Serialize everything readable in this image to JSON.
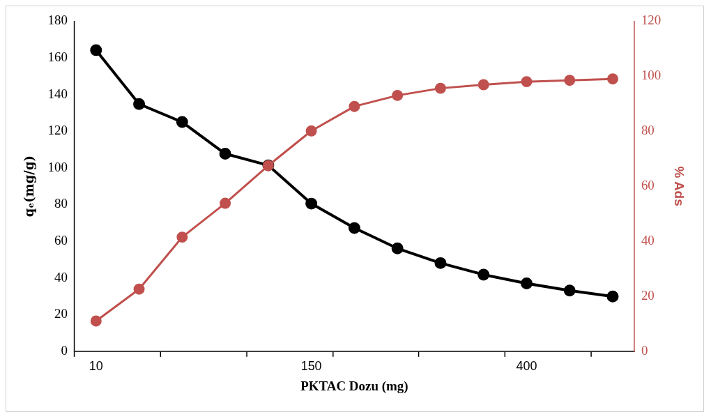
{
  "chart_data": {
    "type": "line",
    "xlabel": "PKTAC Dozu (mg)",
    "ylabel": "qₑ(mg/g)",
    "y2label": "% Ads",
    "categories": [
      "10",
      null,
      null,
      null,
      null,
      "150",
      null,
      null,
      null,
      null,
      "400",
      null,
      null
    ],
    "series": [
      {
        "color": "#000000",
        "values": [
          164.2,
          134.8,
          125,
          107.7,
          101.4,
          80.5,
          67.2,
          56.1,
          48.1,
          41.8,
          37.0,
          33.1,
          29.9
        ]
      },
      {
        "color": "#c0504d",
        "axis": "y2",
        "values": [
          11.0,
          22.6,
          41.5,
          53.8,
          67.5,
          80.1,
          89.0,
          93.0,
          95.6,
          96.9,
          98.0,
          98.5,
          99.0
        ]
      }
    ],
    "ylim": [
      0,
      180
    ],
    "yticks": [
      0,
      20,
      40,
      60,
      80,
      100,
      120,
      140,
      160,
      180
    ],
    "y2lim": [
      0,
      120
    ],
    "y2ticks": [
      0,
      20,
      40,
      60,
      80,
      100,
      120
    ],
    "grid": false,
    "legend": false,
    "marker": "circle",
    "line_style": "solid"
  }
}
